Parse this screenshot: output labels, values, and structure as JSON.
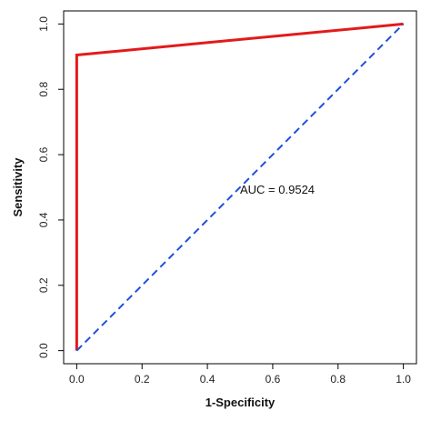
{
  "chart_data": {
    "type": "line",
    "xlabel": "1-Specificity",
    "ylabel": "Sensitivity",
    "xlim": [
      -0.04,
      1.04
    ],
    "ylim": [
      -0.04,
      1.04
    ],
    "x_ticks": [
      0.0,
      0.2,
      0.4,
      0.6,
      0.8,
      1.0
    ],
    "x_tick_labels": [
      "0.0",
      "0.2",
      "0.4",
      "0.6",
      "0.8",
      "1.0"
    ],
    "y_ticks": [
      0.0,
      0.2,
      0.4,
      0.6,
      0.8,
      1.0
    ],
    "y_tick_labels": [
      "0.0",
      "0.2",
      "0.4",
      "0.6",
      "0.8",
      "1.0"
    ],
    "grid": false,
    "series": [
      {
        "style": "solid",
        "color": "#e31a1c",
        "x": [
          0.0,
          0.0,
          1.0
        ],
        "y": [
          0.0,
          0.905,
          1.0
        ]
      },
      {
        "style": "dashed",
        "color": "#1f4fe0",
        "x": [
          0.0,
          1.0
        ],
        "y": [
          0.0,
          1.0
        ]
      }
    ],
    "annotations": [
      {
        "text": "AUC = 0.9524",
        "x": 0.5,
        "y": 0.48
      }
    ]
  }
}
